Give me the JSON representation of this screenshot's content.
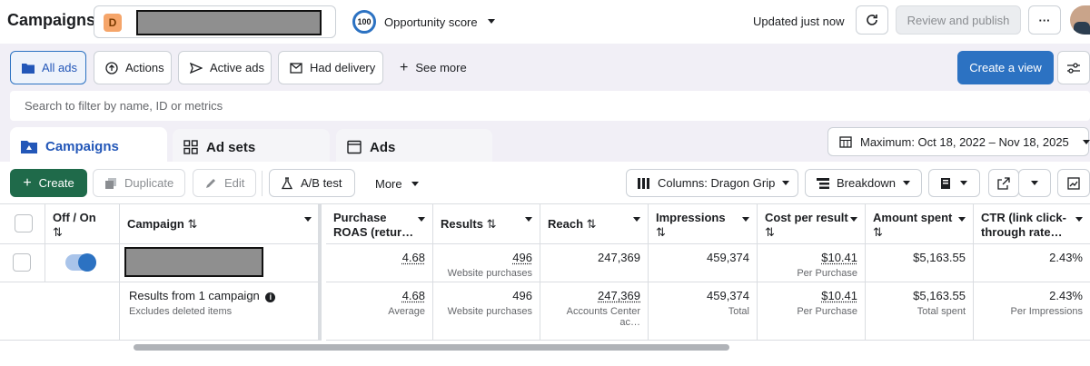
{
  "header": {
    "title": "Campaigns",
    "account_initial": "D",
    "opportunity_score": "100",
    "opportunity_label": "Opportunity score",
    "updated": "Updated just now",
    "review_publish": "Review and publish",
    "more": "···"
  },
  "filters": {
    "all_ads": "All ads",
    "actions": "Actions",
    "active_ads": "Active ads",
    "had_delivery": "Had delivery",
    "see_more": "See more",
    "create_view": "Create a view",
    "search_placeholder": "Search to filter by name, ID or metrics"
  },
  "tabs": {
    "campaigns": "Campaigns",
    "ad_sets": "Ad sets",
    "ads": "Ads",
    "date_range": "Maximum: Oct 18, 2022 – Nov 18, 2025"
  },
  "toolbar": {
    "create": "Create",
    "duplicate": "Duplicate",
    "edit": "Edit",
    "ab_test": "A/B test",
    "more": "More",
    "columns": "Columns: Dragon Grip",
    "breakdown": "Breakdown"
  },
  "table": {
    "headers": {
      "off_on": "Off / On",
      "campaign": "Campaign",
      "roas": "Purchase ROAS (retur…",
      "results": "Results",
      "reach": "Reach",
      "impressions": "Impressions",
      "cost_per_result": "Cost per result",
      "amount_spent": "Amount spent",
      "ctr": "CTR (link click-through rate…"
    },
    "row": {
      "roas": "4.68",
      "results": "496",
      "results_sub": "Website purchases",
      "reach": "247,369",
      "impressions": "459,374",
      "cost": "$10.41",
      "cost_sub": "Per Purchase",
      "spent": "$5,163.55",
      "ctr": "2.43%"
    },
    "summary": {
      "label": "Results from 1 campaign",
      "sub": "Excludes deleted items",
      "roas": "4.68",
      "roas_sub": "Average",
      "results": "496",
      "results_sub": "Website purchases",
      "reach": "247,369",
      "reach_sub": "Accounts Center ac…",
      "impressions": "459,374",
      "impressions_sub": "Total",
      "cost": "$10.41",
      "cost_sub": "Per Purchase",
      "spent": "$5,163.55",
      "spent_sub": "Total spent",
      "ctr": "2.43%",
      "ctr_sub": "Per Impressions"
    }
  },
  "colors": {
    "primary_blue": "#2c72c2",
    "create_green": "#1f6a4a",
    "active_tab": "#2357b8"
  }
}
